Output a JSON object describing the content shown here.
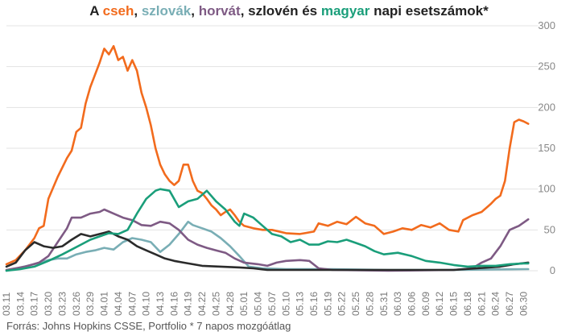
{
  "chart_data": {
    "type": "line",
    "title_parts": [
      {
        "text": "A ",
        "color": "#222222"
      },
      {
        "text": "cseh",
        "color": "#f26b1d"
      },
      {
        "text": ", ",
        "color": "#222222"
      },
      {
        "text": "szlovák",
        "color": "#79aeb5"
      },
      {
        "text": ", ",
        "color": "#222222"
      },
      {
        "text": "horvát",
        "color": "#7e5a84"
      },
      {
        "text": ", szlovén és ",
        "color": "#222222"
      },
      {
        "text": "magyar",
        "color": "#1a9e7a"
      },
      {
        "text": " napi esetszámok*",
        "color": "#222222"
      }
    ],
    "footnote": "Forrás: Johns Hopkins CSSE, Portfolio   * 7 napos mozgóátlag",
    "ylim": [
      0,
      300
    ],
    "yticks": [
      0,
      50,
      100,
      150,
      200,
      250,
      300
    ],
    "y_axis_side": "right",
    "grid": true,
    "x_start": "03.11",
    "x_end": "07.02",
    "xticks": [
      "03.11",
      "03.14",
      "03.17",
      "03.20",
      "03.23",
      "03.26",
      "03.29",
      "04.01",
      "04.04",
      "04.07",
      "04.10",
      "04.13",
      "04.16",
      "04.19",
      "04.22",
      "04.25",
      "04.28",
      "05.01",
      "05.04",
      "05.07",
      "05.10",
      "05.13",
      "05.16",
      "05.19",
      "05.22",
      "05.25",
      "05.28",
      "05.31",
      "06.03",
      "06.06",
      "06.09",
      "06.12",
      "06.15",
      "06.18",
      "06.21",
      "06.24",
      "06.27",
      "06.30"
    ],
    "series": [
      {
        "name": "cseh",
        "color": "#f26b1d",
        "points": [
          [
            "03.11",
            8
          ],
          [
            "03.13",
            13
          ],
          [
            "03.15",
            25
          ],
          [
            "03.17",
            40
          ],
          [
            "03.18",
            52
          ],
          [
            "03.19",
            55
          ],
          [
            "03.20",
            88
          ],
          [
            "03.22",
            115
          ],
          [
            "03.24",
            138
          ],
          [
            "03.25",
            147
          ],
          [
            "03.26",
            170
          ],
          [
            "03.27",
            175
          ],
          [
            "03.28",
            205
          ],
          [
            "03.29",
            225
          ],
          [
            "03.30",
            240
          ],
          [
            "03.31",
            255
          ],
          [
            "04.01",
            272
          ],
          [
            "04.02",
            265
          ],
          [
            "04.03",
            275
          ],
          [
            "04.04",
            258
          ],
          [
            "04.05",
            262
          ],
          [
            "04.06",
            245
          ],
          [
            "04.07",
            258
          ],
          [
            "04.08",
            245
          ],
          [
            "04.09",
            218
          ],
          [
            "04.10",
            200
          ],
          [
            "04.11",
            178
          ],
          [
            "04.12",
            150
          ],
          [
            "04.13",
            130
          ],
          [
            "04.14",
            118
          ],
          [
            "04.15",
            110
          ],
          [
            "04.16",
            105
          ],
          [
            "04.17",
            110
          ],
          [
            "04.18",
            130
          ],
          [
            "04.19",
            130
          ],
          [
            "04.20",
            110
          ],
          [
            "04.21",
            98
          ],
          [
            "04.22",
            95
          ],
          [
            "04.23",
            88
          ],
          [
            "04.24",
            80
          ],
          [
            "04.25",
            75
          ],
          [
            "04.26",
            68
          ],
          [
            "04.27",
            72
          ],
          [
            "04.28",
            75
          ],
          [
            "04.29",
            68
          ],
          [
            "04.30",
            60
          ],
          [
            "05.01",
            55
          ],
          [
            "05.03",
            52
          ],
          [
            "05.05",
            50
          ],
          [
            "05.07",
            50
          ],
          [
            "05.10",
            46
          ],
          [
            "05.13",
            45
          ],
          [
            "05.16",
            48
          ],
          [
            "05.17",
            58
          ],
          [
            "05.19",
            55
          ],
          [
            "05.21",
            60
          ],
          [
            "05.23",
            57
          ],
          [
            "05.25",
            66
          ],
          [
            "05.27",
            58
          ],
          [
            "05.29",
            55
          ],
          [
            "05.31",
            45
          ],
          [
            "06.02",
            48
          ],
          [
            "06.04",
            52
          ],
          [
            "06.06",
            50
          ],
          [
            "06.08",
            56
          ],
          [
            "06.10",
            53
          ],
          [
            "06.12",
            58
          ],
          [
            "06.14",
            50
          ],
          [
            "06.16",
            48
          ],
          [
            "06.17",
            62
          ],
          [
            "06.19",
            68
          ],
          [
            "06.21",
            72
          ],
          [
            "06.23",
            82
          ],
          [
            "06.24",
            88
          ],
          [
            "06.25",
            92
          ],
          [
            "06.26",
            110
          ],
          [
            "06.27",
            150
          ],
          [
            "06.28",
            182
          ],
          [
            "06.29",
            185
          ],
          [
            "06.30",
            183
          ],
          [
            "07.01",
            180
          ]
        ]
      },
      {
        "name": "szlovák",
        "color": "#79aeb5",
        "points": [
          [
            "03.11",
            0
          ],
          [
            "03.14",
            4
          ],
          [
            "03.17",
            8
          ],
          [
            "03.20",
            13
          ],
          [
            "03.22",
            15
          ],
          [
            "03.24",
            15
          ],
          [
            "03.26",
            20
          ],
          [
            "03.28",
            23
          ],
          [
            "03.30",
            25
          ],
          [
            "04.01",
            28
          ],
          [
            "04.03",
            26
          ],
          [
            "04.05",
            35
          ],
          [
            "04.07",
            40
          ],
          [
            "04.09",
            38
          ],
          [
            "04.11",
            35
          ],
          [
            "04.13",
            23
          ],
          [
            "04.15",
            32
          ],
          [
            "04.17",
            45
          ],
          [
            "04.19",
            60
          ],
          [
            "04.20",
            56
          ],
          [
            "04.22",
            52
          ],
          [
            "04.24",
            48
          ],
          [
            "04.26",
            40
          ],
          [
            "04.28",
            30
          ],
          [
            "04.30",
            18
          ],
          [
            "05.02",
            5
          ],
          [
            "05.05",
            3
          ],
          [
            "05.10",
            2
          ],
          [
            "05.20",
            2
          ],
          [
            "06.01",
            1
          ],
          [
            "06.15",
            1
          ],
          [
            "07.01",
            2
          ]
        ]
      },
      {
        "name": "horvát",
        "color": "#7e5a84",
        "points": [
          [
            "03.11",
            1
          ],
          [
            "03.15",
            5
          ],
          [
            "03.18",
            10
          ],
          [
            "03.20",
            18
          ],
          [
            "03.22",
            35
          ],
          [
            "03.24",
            52
          ],
          [
            "03.25",
            65
          ],
          [
            "03.27",
            65
          ],
          [
            "03.29",
            70
          ],
          [
            "03.31",
            72
          ],
          [
            "04.01",
            75
          ],
          [
            "04.03",
            70
          ],
          [
            "04.05",
            65
          ],
          [
            "04.07",
            62
          ],
          [
            "04.09",
            56
          ],
          [
            "04.11",
            55
          ],
          [
            "04.13",
            60
          ],
          [
            "04.15",
            58
          ],
          [
            "04.17",
            50
          ],
          [
            "04.19",
            38
          ],
          [
            "04.21",
            32
          ],
          [
            "04.23",
            28
          ],
          [
            "04.25",
            25
          ],
          [
            "04.27",
            22
          ],
          [
            "04.29",
            15
          ],
          [
            "05.01",
            10
          ],
          [
            "05.04",
            8
          ],
          [
            "05.06",
            6
          ],
          [
            "05.08",
            10
          ],
          [
            "05.10",
            12
          ],
          [
            "05.13",
            13
          ],
          [
            "05.15",
            12
          ],
          [
            "05.17",
            3
          ],
          [
            "05.20",
            1
          ],
          [
            "06.01",
            0
          ],
          [
            "06.15",
            1
          ],
          [
            "06.19",
            3
          ],
          [
            "06.21",
            10
          ],
          [
            "06.23",
            15
          ],
          [
            "06.25",
            30
          ],
          [
            "06.27",
            50
          ],
          [
            "06.29",
            55
          ],
          [
            "07.01",
            63
          ]
        ]
      },
      {
        "name": "szlovén",
        "color": "#2b2b2b",
        "points": [
          [
            "03.11",
            5
          ],
          [
            "03.13",
            10
          ],
          [
            "03.15",
            25
          ],
          [
            "03.17",
            35
          ],
          [
            "03.19",
            30
          ],
          [
            "03.21",
            28
          ],
          [
            "03.23",
            30
          ],
          [
            "03.25",
            38
          ],
          [
            "03.27",
            45
          ],
          [
            "03.29",
            42
          ],
          [
            "03.31",
            45
          ],
          [
            "04.02",
            48
          ],
          [
            "04.04",
            42
          ],
          [
            "04.06",
            38
          ],
          [
            "04.08",
            30
          ],
          [
            "04.10",
            25
          ],
          [
            "04.12",
            20
          ],
          [
            "04.14",
            15
          ],
          [
            "04.16",
            12
          ],
          [
            "04.18",
            10
          ],
          [
            "04.20",
            8
          ],
          [
            "04.22",
            6
          ],
          [
            "04.26",
            5
          ],
          [
            "04.30",
            4
          ],
          [
            "05.03",
            3
          ],
          [
            "05.06",
            1
          ],
          [
            "05.10",
            1
          ],
          [
            "05.20",
            1
          ],
          [
            "06.01",
            1
          ],
          [
            "06.15",
            1
          ],
          [
            "06.20",
            3
          ],
          [
            "06.25",
            5
          ],
          [
            "06.28",
            8
          ],
          [
            "07.01",
            10
          ]
        ]
      },
      {
        "name": "magyar",
        "color": "#1a9e7a",
        "points": [
          [
            "03.11",
            0
          ],
          [
            "03.14",
            2
          ],
          [
            "03.17",
            5
          ],
          [
            "03.20",
            12
          ],
          [
            "03.23",
            20
          ],
          [
            "03.25",
            26
          ],
          [
            "03.27",
            32
          ],
          [
            "03.29",
            38
          ],
          [
            "03.31",
            42
          ],
          [
            "04.02",
            46
          ],
          [
            "04.04",
            45
          ],
          [
            "04.06",
            50
          ],
          [
            "04.08",
            70
          ],
          [
            "04.10",
            88
          ],
          [
            "04.12",
            98
          ],
          [
            "04.13",
            100
          ],
          [
            "04.15",
            98
          ],
          [
            "04.17",
            78
          ],
          [
            "04.19",
            85
          ],
          [
            "04.21",
            88
          ],
          [
            "04.23",
            98
          ],
          [
            "04.25",
            85
          ],
          [
            "04.27",
            75
          ],
          [
            "04.29",
            60
          ],
          [
            "04.30",
            55
          ],
          [
            "05.01",
            70
          ],
          [
            "05.03",
            65
          ],
          [
            "05.05",
            55
          ],
          [
            "05.07",
            45
          ],
          [
            "05.09",
            42
          ],
          [
            "05.11",
            35
          ],
          [
            "05.13",
            38
          ],
          [
            "05.15",
            32
          ],
          [
            "05.17",
            32
          ],
          [
            "05.19",
            36
          ],
          [
            "05.21",
            35
          ],
          [
            "05.23",
            38
          ],
          [
            "05.25",
            34
          ],
          [
            "05.27",
            30
          ],
          [
            "05.29",
            24
          ],
          [
            "05.31",
            20
          ],
          [
            "06.03",
            22
          ],
          [
            "06.06",
            18
          ],
          [
            "06.09",
            12
          ],
          [
            "06.12",
            10
          ],
          [
            "06.15",
            7
          ],
          [
            "06.18",
            5
          ],
          [
            "06.21",
            6
          ],
          [
            "06.24",
            6
          ],
          [
            "06.27",
            8
          ],
          [
            "06.30",
            9
          ],
          [
            "07.01",
            9
          ]
        ]
      }
    ]
  }
}
